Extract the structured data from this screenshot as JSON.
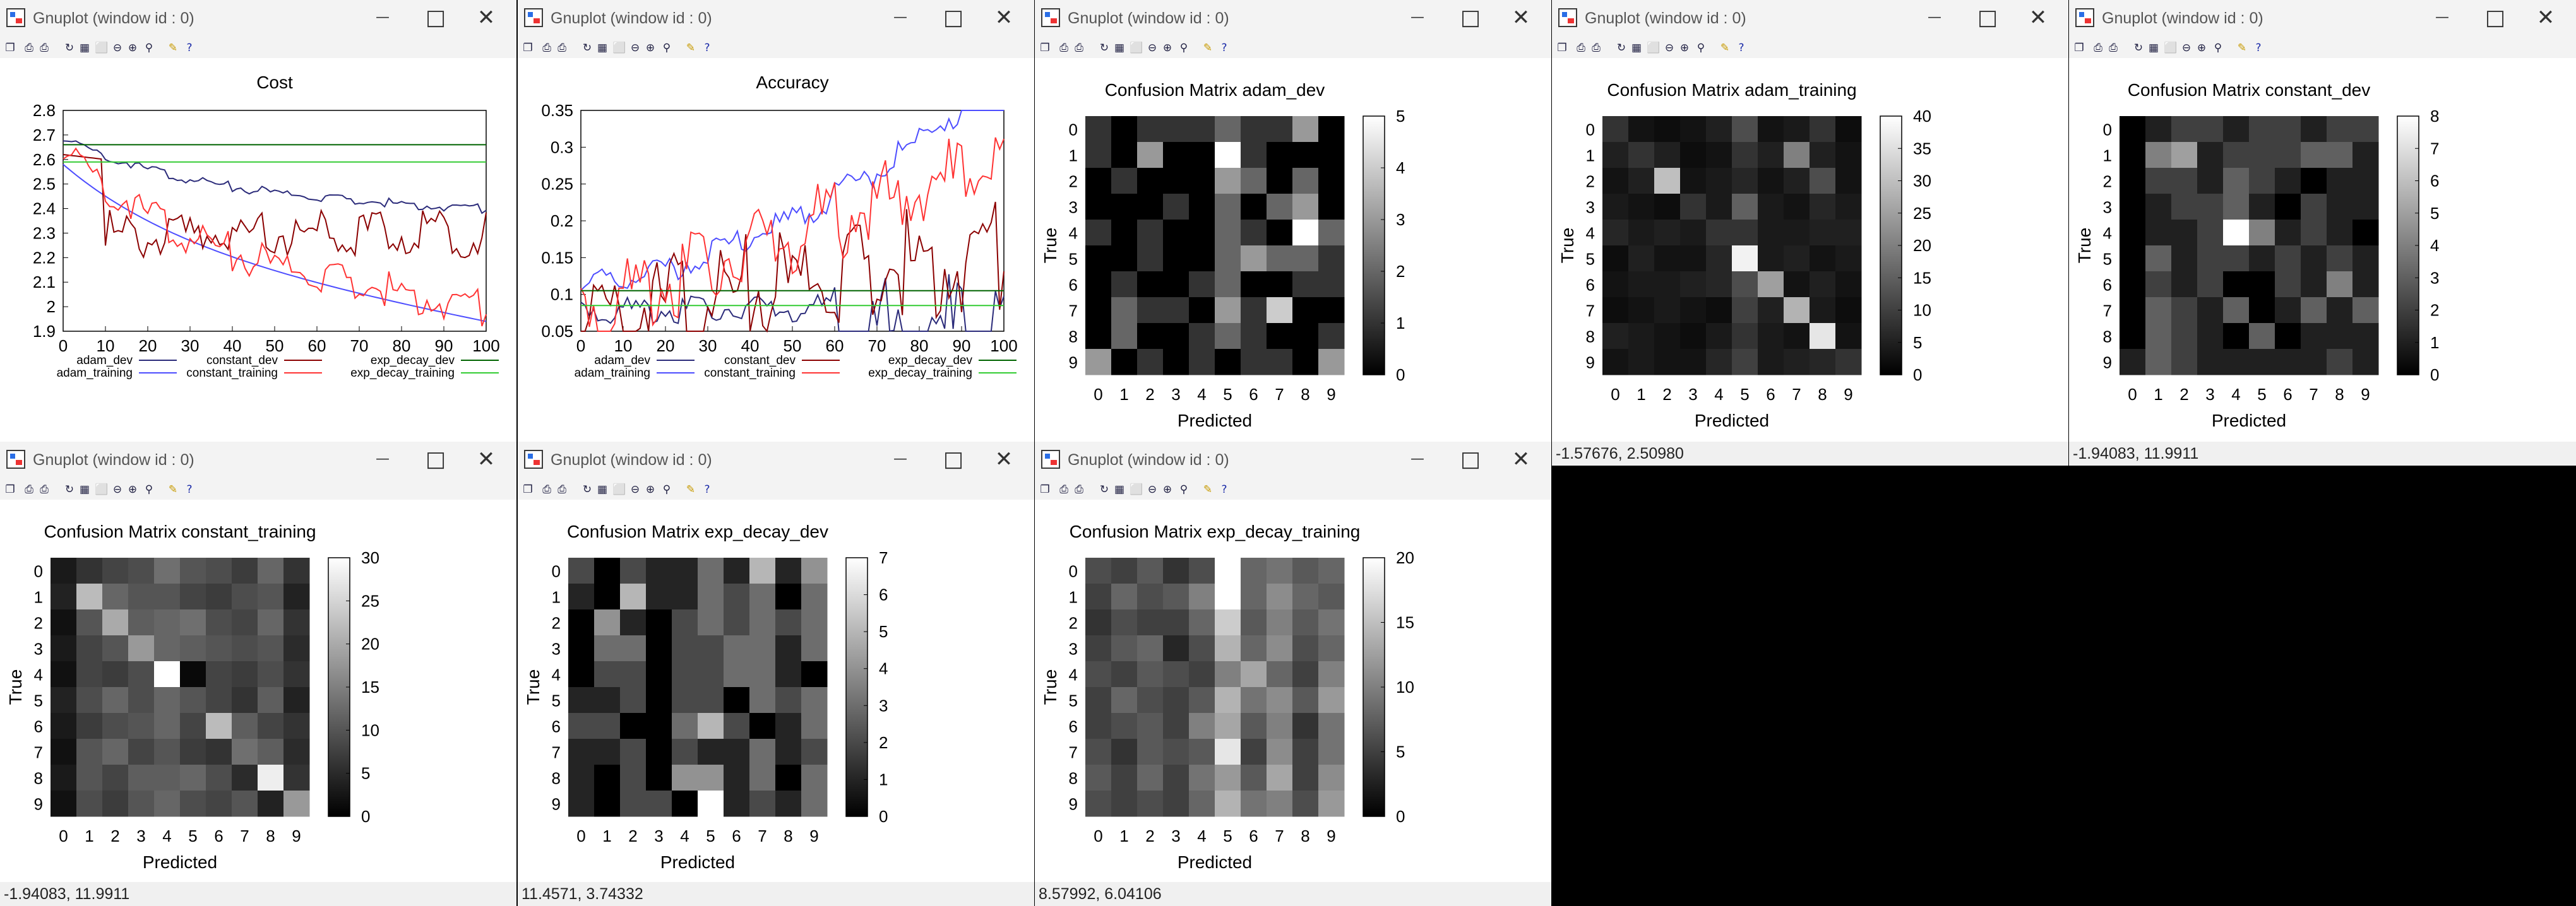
{
  "desktop": {
    "background": "#000000"
  },
  "window_title": "Gnuplot (window id : 0)",
  "icons": {
    "app": "gnuplot-icon",
    "minimize": "minimize-icon",
    "maximize": "maximize-icon",
    "close": "close-icon"
  },
  "toolbar_icons": [
    "copy-icon",
    "print-icon",
    "printer-setup-icon",
    "replot-icon",
    "grid-icon",
    "autoscale-icon",
    "zoom-previous-icon",
    "zoom-next-icon",
    "unzoom-icon",
    "options-icon",
    "help-icon"
  ],
  "toolbar_glyphs": [
    "❐",
    "⎙",
    "⎙",
    "↻",
    "▦",
    "⬜",
    "⊖",
    "⊕",
    "⚲",
    "✎",
    "?"
  ],
  "windows": [
    {
      "id": "cost",
      "status": "",
      "chart_data": {
        "type": "line",
        "title": "Cost",
        "xlabel": "",
        "ylabel": "",
        "xlim": [
          0,
          100
        ],
        "ylim": [
          1.9,
          2.8
        ],
        "xticks": [
          "0",
          "10",
          "20",
          "30",
          "40",
          "50",
          "60",
          "70",
          "80",
          "90",
          "100"
        ],
        "yticks": [
          "1.9",
          "2",
          "2.1",
          "2.2",
          "2.3",
          "2.4",
          "2.5",
          "2.6",
          "2.7",
          "2.8"
        ],
        "series": [
          {
            "name": "adam_dev",
            "color": "#2b2b7a"
          },
          {
            "name": "adam_training",
            "color": "#4d4dff"
          },
          {
            "name": "constant_dev",
            "color": "#8b0000"
          },
          {
            "name": "constant_training",
            "color": "#ff3333"
          },
          {
            "name": "exp_decay_dev",
            "color": "#006400"
          },
          {
            "name": "exp_decay_training",
            "color": "#33cc33"
          }
        ]
      }
    },
    {
      "id": "accuracy",
      "status": "",
      "chart_data": {
        "type": "line",
        "title": "Accuracy",
        "xlabel": "",
        "ylabel": "",
        "xlim": [
          0,
          100
        ],
        "ylim": [
          0.05,
          0.35
        ],
        "xticks": [
          "0",
          "10",
          "20",
          "30",
          "40",
          "50",
          "60",
          "70",
          "80",
          "90",
          "100"
        ],
        "yticks": [
          "0.05",
          "0.1",
          "0.15",
          "0.2",
          "0.25",
          "0.3",
          "0.35"
        ],
        "series": [
          {
            "name": "adam_dev",
            "color": "#2b2b7a"
          },
          {
            "name": "adam_training",
            "color": "#4d4dff"
          },
          {
            "name": "constant_dev",
            "color": "#8b0000"
          },
          {
            "name": "constant_training",
            "color": "#ff3333"
          },
          {
            "name": "exp_decay_dev",
            "color": "#006400"
          },
          {
            "name": "exp_decay_training",
            "color": "#33cc33"
          }
        ]
      }
    },
    {
      "id": "cm_adam_dev",
      "status": "",
      "chart_data": {
        "type": "heatmap",
        "title": "Confusion Matrix adam_dev",
        "xlabel": "Predicted",
        "ylabel": "True",
        "categories": [
          "0",
          "1",
          "2",
          "3",
          "4",
          "5",
          "6",
          "7",
          "8",
          "9"
        ],
        "cbmax": 5,
        "cbticks": [
          "0",
          "1",
          "2",
          "3",
          "4",
          "5"
        ],
        "values": [
          [
            1,
            0,
            1,
            1,
            1,
            2,
            1,
            1,
            3,
            0
          ],
          [
            1,
            0,
            3,
            0,
            0,
            5,
            1,
            0,
            0,
            0
          ],
          [
            0,
            1,
            0,
            0,
            0,
            3,
            2,
            0,
            2,
            0
          ],
          [
            0,
            0,
            0,
            1,
            0,
            2,
            0,
            2,
            3,
            0
          ],
          [
            1,
            0,
            1,
            0,
            0,
            2,
            1,
            0,
            5,
            2
          ],
          [
            0,
            0,
            1,
            0,
            0,
            2,
            3,
            2,
            2,
            1
          ],
          [
            0,
            1,
            0,
            0,
            1,
            2,
            0,
            0,
            1,
            1
          ],
          [
            0,
            2,
            1,
            1,
            0,
            3,
            1,
            4,
            0,
            0
          ],
          [
            0,
            2,
            0,
            0,
            1,
            2,
            1,
            0,
            0,
            1
          ],
          [
            3,
            0,
            1,
            0,
            1,
            0,
            1,
            1,
            0,
            3
          ]
        ]
      }
    },
    {
      "id": "cm_adam_training",
      "status": "-1.57676,  2.50980",
      "chart_data": {
        "type": "heatmap",
        "title": "Confusion Matrix adam_training",
        "xlabel": "Predicted",
        "ylabel": "True",
        "categories": [
          "0",
          "1",
          "2",
          "3",
          "4",
          "5",
          "6",
          "7",
          "8",
          "9"
        ],
        "cbmax": 40,
        "cbticks": [
          "0",
          "5",
          "10",
          "15",
          "20",
          "25",
          "30",
          "35",
          "40"
        ],
        "values": [
          [
            8,
            3,
            2,
            3,
            5,
            12,
            3,
            4,
            8,
            2
          ],
          [
            5,
            8,
            5,
            2,
            3,
            8,
            5,
            20,
            5,
            3
          ],
          [
            3,
            5,
            30,
            3,
            4,
            6,
            3,
            5,
            12,
            3
          ],
          [
            4,
            3,
            2,
            8,
            4,
            15,
            4,
            3,
            6,
            4
          ],
          [
            6,
            4,
            5,
            4,
            8,
            8,
            4,
            4,
            5,
            5
          ],
          [
            2,
            5,
            3,
            3,
            6,
            38,
            4,
            5,
            3,
            4
          ],
          [
            3,
            4,
            4,
            5,
            6,
            12,
            25,
            3,
            5,
            3
          ],
          [
            2,
            3,
            4,
            3,
            2,
            10,
            5,
            28,
            4,
            2
          ],
          [
            5,
            4,
            3,
            2,
            4,
            8,
            4,
            3,
            36,
            3
          ],
          [
            3,
            4,
            3,
            3,
            6,
            10,
            4,
            5,
            6,
            8
          ]
        ]
      }
    },
    {
      "id": "cm_constant_dev",
      "status": "-1.94083,  11.9911",
      "chart_data": {
        "type": "heatmap",
        "title": "Confusion Matrix constant_dev",
        "xlabel": "Predicted",
        "ylabel": "True",
        "categories": [
          "0",
          "1",
          "2",
          "3",
          "4",
          "5",
          "6",
          "7",
          "8",
          "9"
        ],
        "cbmax": 8,
        "cbticks": [
          "0",
          "1",
          "2",
          "3",
          "4",
          "5",
          "6",
          "7",
          "8"
        ],
        "values": [
          [
            0,
            1,
            2,
            2,
            1,
            2,
            2,
            1,
            2,
            2
          ],
          [
            0,
            4,
            5,
            1,
            2,
            2,
            2,
            3,
            3,
            1
          ],
          [
            0,
            2,
            2,
            1,
            3,
            2,
            1,
            0,
            1,
            1
          ],
          [
            0,
            1,
            2,
            2,
            3,
            1,
            0,
            2,
            1,
            1
          ],
          [
            0,
            1,
            1,
            2,
            8,
            4,
            1,
            2,
            1,
            0
          ],
          [
            0,
            3,
            1,
            2,
            2,
            1,
            2,
            1,
            2,
            1
          ],
          [
            0,
            2,
            1,
            2,
            0,
            0,
            2,
            1,
            4,
            1
          ],
          [
            0,
            3,
            2,
            1,
            3,
            0,
            1,
            3,
            1,
            3
          ],
          [
            0,
            3,
            2,
            1,
            0,
            3,
            0,
            1,
            1,
            1
          ],
          [
            1,
            3,
            2,
            1,
            1,
            1,
            1,
            1,
            2,
            1
          ]
        ]
      }
    },
    {
      "id": "cm_constant_training",
      "status": "-1.94083,  11.9911",
      "chart_data": {
        "type": "heatmap",
        "title": "Confusion Matrix constant_training",
        "xlabel": "Predicted",
        "ylabel": "True",
        "categories": [
          "0",
          "1",
          "2",
          "3",
          "4",
          "5",
          "6",
          "7",
          "8",
          "9"
        ],
        "cbmax": 30,
        "cbticks": [
          "0",
          "5",
          "10",
          "15",
          "20",
          "25",
          "30"
        ],
        "values": [
          [
            3,
            6,
            8,
            9,
            13,
            10,
            9,
            7,
            12,
            6
          ],
          [
            4,
            22,
            12,
            10,
            10,
            8,
            7,
            9,
            10,
            4
          ],
          [
            2,
            10,
            20,
            11,
            12,
            13,
            9,
            8,
            12,
            6
          ],
          [
            3,
            8,
            10,
            18,
            12,
            11,
            10,
            9,
            10,
            5
          ],
          [
            2,
            8,
            7,
            9,
            30,
            1,
            8,
            7,
            9,
            6
          ],
          [
            4,
            9,
            12,
            9,
            12,
            10,
            8,
            6,
            11,
            4
          ],
          [
            3,
            7,
            9,
            10,
            12,
            8,
            22,
            11,
            8,
            6
          ],
          [
            2,
            10,
            12,
            8,
            10,
            7,
            6,
            13,
            11,
            5
          ],
          [
            3,
            10,
            8,
            11,
            11,
            12,
            9,
            5,
            28,
            6
          ],
          [
            2,
            9,
            7,
            10,
            12,
            9,
            8,
            10,
            4,
            18
          ]
        ]
      }
    },
    {
      "id": "cm_exp_decay_dev",
      "status": "11.4571,  3.74332",
      "chart_data": {
        "type": "heatmap",
        "title": "Confusion Matrix exp_decay_dev",
        "xlabel": "Predicted",
        "ylabel": "True",
        "categories": [
          "0",
          "1",
          "2",
          "3",
          "4",
          "5",
          "6",
          "7",
          "8",
          "9"
        ],
        "cbmax": 7,
        "cbticks": [
          "0",
          "1",
          "2",
          "3",
          "4",
          "5",
          "6",
          "7"
        ],
        "values": [
          [
            2,
            0,
            2,
            1,
            1,
            3,
            1,
            5,
            1,
            4
          ],
          [
            1,
            0,
            5,
            1,
            1,
            3,
            2,
            3,
            0,
            3
          ],
          [
            0,
            4,
            1,
            0,
            2,
            3,
            2,
            3,
            2,
            3
          ],
          [
            0,
            3,
            3,
            0,
            2,
            2,
            3,
            3,
            1,
            3
          ],
          [
            0,
            2,
            2,
            0,
            2,
            2,
            3,
            3,
            1,
            0
          ],
          [
            1,
            1,
            2,
            0,
            2,
            2,
            0,
            3,
            2,
            3
          ],
          [
            2,
            2,
            0,
            0,
            3,
            5,
            2,
            0,
            1,
            3
          ],
          [
            1,
            1,
            2,
            0,
            2,
            1,
            1,
            3,
            1,
            2
          ],
          [
            1,
            0,
            2,
            0,
            4,
            4,
            1,
            3,
            0,
            3
          ],
          [
            1,
            0,
            2,
            2,
            0,
            7,
            1,
            2,
            1,
            3
          ]
        ]
      }
    },
    {
      "id": "cm_exp_decay_training",
      "status": "8.57992,  6.04106",
      "chart_data": {
        "type": "heatmap",
        "title": "Confusion Matrix exp_decay_training",
        "xlabel": "Predicted",
        "ylabel": "True",
        "categories": [
          "0",
          "1",
          "2",
          "3",
          "4",
          "5",
          "6",
          "7",
          "8",
          "9"
        ],
        "cbmax": 20,
        "cbticks": [
          "0",
          "5",
          "10",
          "15",
          "20"
        ],
        "values": [
          [
            6,
            5,
            7,
            4,
            6,
            20,
            8,
            9,
            7,
            8
          ],
          [
            5,
            8,
            6,
            7,
            10,
            20,
            8,
            11,
            8,
            7
          ],
          [
            4,
            6,
            5,
            5,
            8,
            16,
            7,
            10,
            7,
            9
          ],
          [
            5,
            7,
            8,
            3,
            6,
            14,
            8,
            11,
            6,
            8
          ],
          [
            6,
            5,
            7,
            6,
            5,
            10,
            13,
            8,
            5,
            10
          ],
          [
            5,
            8,
            6,
            5,
            7,
            14,
            9,
            11,
            7,
            12
          ],
          [
            5,
            6,
            7,
            5,
            10,
            13,
            7,
            10,
            4,
            9
          ],
          [
            6,
            4,
            7,
            6,
            7,
            18,
            5,
            11,
            5,
            9
          ],
          [
            7,
            5,
            8,
            5,
            9,
            12,
            7,
            13,
            5,
            11
          ],
          [
            6,
            5,
            6,
            5,
            8,
            14,
            9,
            10,
            6,
            12
          ]
        ]
      }
    }
  ]
}
